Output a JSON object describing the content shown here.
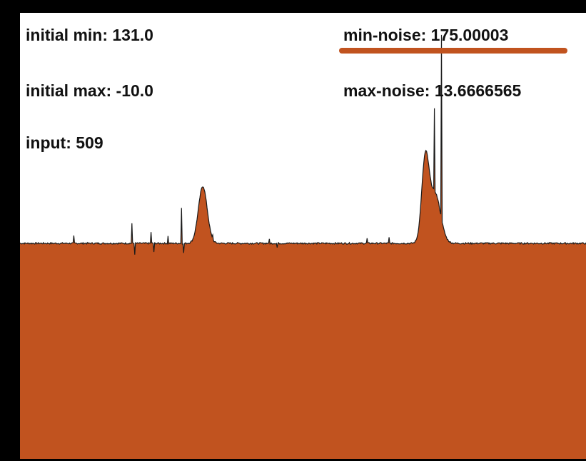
{
  "colors": {
    "frame": "#000000",
    "canvas": "#ffffff",
    "fill": "#c1531f",
    "outline": "#1a1a1a",
    "text": "#111111"
  },
  "stats": {
    "initial_min_label": "initial min: 131.0",
    "initial_max_label": "initial max: -10.0",
    "input_label": "input: 509",
    "min_noise_label": "min-noise:  175.00003",
    "max_noise_label": "max-noise: 13.6666565"
  },
  "waveform": {
    "baseline": 0,
    "spikes": [
      {
        "x": 0.095,
        "h": 10
      },
      {
        "x": 0.198,
        "h": 28
      },
      {
        "x": 0.203,
        "h": -15
      },
      {
        "x": 0.231,
        "h": 16
      },
      {
        "x": 0.236,
        "h": -12
      },
      {
        "x": 0.262,
        "h": 10
      },
      {
        "x": 0.285,
        "h": 50
      },
      {
        "x": 0.289,
        "h": -14
      },
      {
        "x": 0.34,
        "h": 6
      },
      {
        "x": 0.44,
        "h": 6
      },
      {
        "x": 0.454,
        "h": -6
      },
      {
        "x": 0.613,
        "h": 7
      },
      {
        "x": 0.652,
        "h": 8
      },
      {
        "x": 0.732,
        "h": 114
      },
      {
        "x": 0.745,
        "h": 258
      }
    ],
    "bumps": [
      {
        "x": 0.323,
        "h": 80,
        "w": 0.011
      },
      {
        "x": 0.716,
        "h": 112,
        "w": 0.009
      },
      {
        "x": 0.733,
        "h": 70,
        "w": 0.014
      }
    ]
  }
}
